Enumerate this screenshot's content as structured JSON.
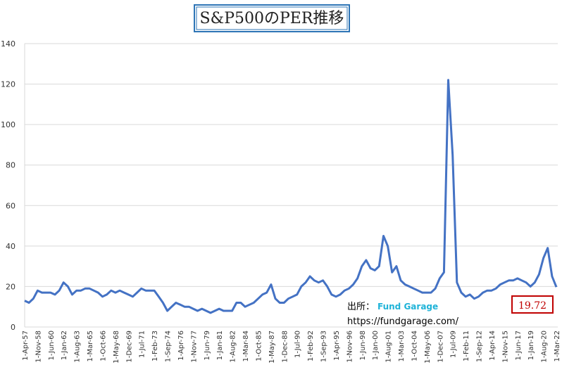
{
  "chart_data": {
    "type": "line",
    "title": "S&P500のPER推移",
    "categories": [
      "1-Apr-57",
      null,
      null,
      "1-Nov-58",
      null,
      null,
      "1-Jun-60",
      null,
      null,
      "1-Jan-62",
      null,
      null,
      "1-Aug-63",
      null,
      null,
      "1-Mar-65",
      null,
      null,
      "1-Oct-66",
      null,
      null,
      "1-May-68",
      null,
      null,
      "1-Dec-69",
      null,
      null,
      "1-Jul-71",
      null,
      null,
      "1-Feb-73",
      null,
      null,
      "1-Sep-74",
      null,
      null,
      "1-Apr-76",
      null,
      null,
      "1-Nov-77",
      null,
      null,
      "1-Jun-79",
      null,
      null,
      "1-Jan-81",
      null,
      null,
      "1-Aug-82",
      null,
      null,
      "1-Mar-84",
      null,
      null,
      "1-Oct-85",
      null,
      null,
      "1-May-87",
      null,
      null,
      "1-Dec-88",
      null,
      null,
      "1-Jul-90",
      null,
      null,
      "1-Feb-92",
      null,
      null,
      "1-Sep-93",
      null,
      null,
      "1-Apr-95",
      null,
      null,
      "1-Nov-96",
      null,
      null,
      "1-Jun-98",
      null,
      null,
      "1-Jan-00",
      null,
      null,
      "1-Aug-01",
      null,
      null,
      "1-Mar-03",
      null,
      null,
      "1-Oct-04",
      null,
      null,
      "1-May-06",
      null,
      null,
      "1-Dec-07",
      null,
      null,
      "1-Jul-09",
      null,
      null,
      "1-Feb-11",
      null,
      null,
      "1-Sep-12",
      null,
      null,
      "1-Apr-14",
      null,
      null,
      "1-Nov-15",
      null,
      null,
      "1-Jun-17",
      null,
      null,
      "1-Jan-19",
      null,
      null,
      "1-Aug-20",
      null,
      null,
      "1-Mar-22"
    ],
    "values": [
      13,
      12,
      14,
      18,
      17,
      17,
      17,
      16,
      18,
      22,
      20,
      16,
      18,
      18,
      19,
      19,
      18,
      17,
      15,
      16,
      18,
      17,
      18,
      17,
      16,
      15,
      17,
      19,
      18,
      18,
      18,
      15,
      12,
      8,
      10,
      12,
      11,
      10,
      10,
      9,
      8,
      9,
      8,
      7,
      8,
      9,
      8,
      8,
      8,
      12,
      12,
      10,
      11,
      12,
      14,
      16,
      17,
      21,
      14,
      12,
      12,
      14,
      15,
      16,
      20,
      22,
      25,
      23,
      22,
      23,
      20,
      16,
      15,
      16,
      18,
      19,
      21,
      24,
      30,
      33,
      29,
      28,
      30,
      45,
      40,
      27,
      30,
      23,
      21,
      20,
      19,
      18,
      17,
      17,
      17,
      19,
      24,
      27,
      122,
      85,
      22,
      17,
      15,
      16,
      14,
      15,
      17,
      18,
      18,
      19,
      21,
      22,
      23,
      23,
      24,
      23,
      22,
      20,
      22,
      26,
      34,
      39,
      25,
      19.72
    ],
    "color": "#4472c4",
    "ylim": [
      0,
      140
    ],
    "yticks": [
      0,
      20,
      40,
      60,
      80,
      100,
      120,
      140
    ],
    "grid": true,
    "source_label": "出所：",
    "source_name": "Fund Garage",
    "source_url": "https://fundgarage.com/"
  }
}
